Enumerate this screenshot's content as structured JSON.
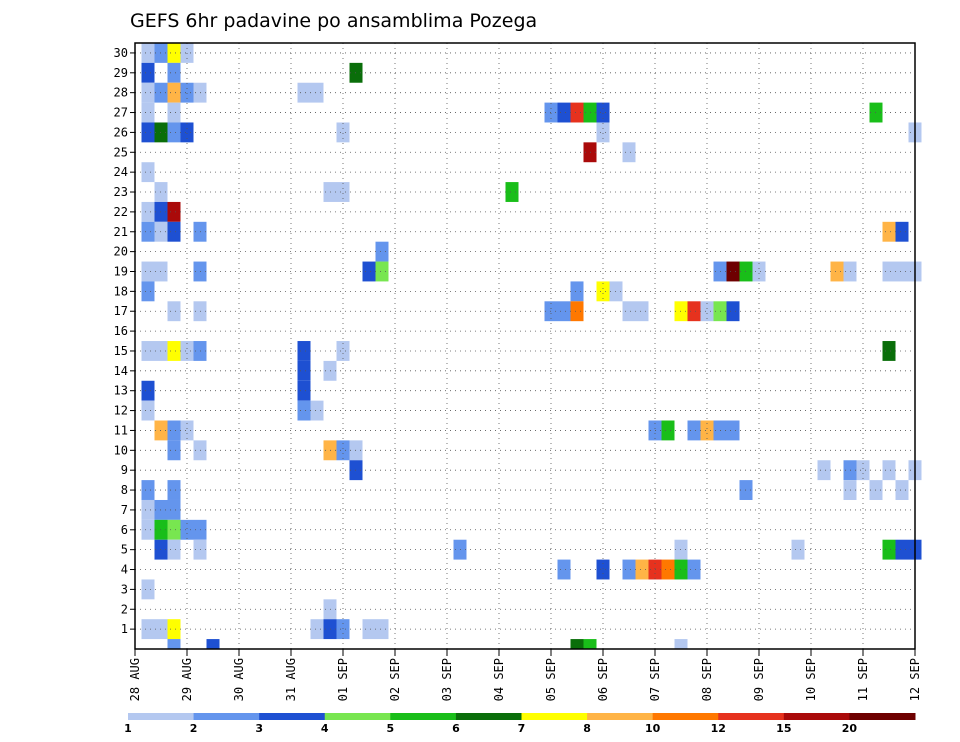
{
  "chart_data": {
    "type": "heatmap",
    "title": "GEFS 6hr padavine po ansamblima Pozega",
    "ylabel": "",
    "xlabel": "",
    "x_tick_labels": [
      "28 AUG",
      "29 AUG",
      "30 AUG",
      "31 AUG",
      "01 SEP",
      "02 SEP",
      "03 SEP",
      "04 SEP",
      "05 SEP",
      "06 SEP",
      "07 SEP",
      "08 SEP",
      "09 SEP",
      "10 SEP",
      "11 SEP",
      "12 SEP"
    ],
    "y_tick_labels": [
      "1",
      "2",
      "3",
      "4",
      "5",
      "6",
      "7",
      "8",
      "9",
      "10",
      "11",
      "12",
      "13",
      "14",
      "15",
      "16",
      "17",
      "18",
      "19",
      "20",
      "21",
      "22",
      "23",
      "24",
      "25",
      "26",
      "27",
      "28",
      "29",
      "30"
    ],
    "time_steps_per_day": 4,
    "ylim": [
      0,
      30
    ],
    "grid": "dotted",
    "colorbar": {
      "labels": [
        "1",
        "2",
        "3",
        "4",
        "5",
        "6",
        "7",
        "8",
        "10",
        "12",
        "15",
        "20"
      ],
      "colors": [
        "#b4c8f0",
        "#6495ed",
        "#1e50d2",
        "#78e650",
        "#19be19",
        "#0a6e0a",
        "#ffff00",
        "#ffb446",
        "#ff7800",
        "#e6321e",
        "#aa0a0a",
        "#6e0000"
      ]
    },
    "cells": [
      [
        1,
        30,
        0
      ],
      [
        2,
        30,
        1
      ],
      [
        3,
        30,
        6
      ],
      [
        4,
        30,
        0
      ],
      [
        1,
        29,
        2
      ],
      [
        3,
        29,
        1
      ],
      [
        17,
        29,
        5
      ],
      [
        1,
        28,
        0
      ],
      [
        2,
        28,
        1
      ],
      [
        3,
        28,
        7
      ],
      [
        4,
        28,
        1
      ],
      [
        5,
        28,
        0
      ],
      [
        13,
        28,
        0
      ],
      [
        14,
        28,
        0
      ],
      [
        1,
        27,
        0
      ],
      [
        3,
        27,
        0
      ],
      [
        32,
        27,
        1
      ],
      [
        33,
        27,
        2
      ],
      [
        34,
        27,
        9
      ],
      [
        35,
        27,
        4
      ],
      [
        36,
        27,
        2
      ],
      [
        57,
        27,
        4
      ],
      [
        1,
        26,
        2
      ],
      [
        2,
        26,
        5
      ],
      [
        3,
        26,
        1
      ],
      [
        4,
        26,
        2
      ],
      [
        16,
        26,
        0
      ],
      [
        36,
        26,
        0
      ],
      [
        60,
        26,
        0
      ],
      [
        35,
        25,
        10
      ],
      [
        38,
        25,
        0
      ],
      [
        1,
        24,
        0
      ],
      [
        2,
        23,
        0
      ],
      [
        15,
        23,
        0
      ],
      [
        16,
        23,
        0
      ],
      [
        29,
        23,
        4
      ],
      [
        1,
        22,
        0
      ],
      [
        2,
        22,
        2
      ],
      [
        3,
        22,
        10
      ],
      [
        1,
        21,
        1
      ],
      [
        2,
        21,
        0
      ],
      [
        3,
        21,
        2
      ],
      [
        5,
        21,
        1
      ],
      [
        58,
        21,
        7
      ],
      [
        59,
        21,
        2
      ],
      [
        19,
        20,
        1
      ],
      [
        1,
        19,
        0
      ],
      [
        2,
        19,
        0
      ],
      [
        5,
        19,
        1
      ],
      [
        18,
        19,
        2
      ],
      [
        19,
        19,
        3
      ],
      [
        45,
        19,
        1
      ],
      [
        46,
        19,
        11
      ],
      [
        47,
        19,
        4
      ],
      [
        48,
        19,
        0
      ],
      [
        54,
        19,
        7
      ],
      [
        55,
        19,
        0
      ],
      [
        58,
        19,
        0
      ],
      [
        59,
        19,
        0
      ],
      [
        60,
        19,
        0
      ],
      [
        1,
        18,
        1
      ],
      [
        34,
        18,
        1
      ],
      [
        36,
        18,
        6
      ],
      [
        37,
        18,
        0
      ],
      [
        3,
        17,
        0
      ],
      [
        5,
        17,
        0
      ],
      [
        32,
        17,
        1
      ],
      [
        33,
        17,
        1
      ],
      [
        34,
        17,
        8
      ],
      [
        38,
        17,
        0
      ],
      [
        39,
        17,
        0
      ],
      [
        42,
        17,
        6
      ],
      [
        43,
        17,
        9
      ],
      [
        44,
        17,
        0
      ],
      [
        45,
        17,
        3
      ],
      [
        46,
        17,
        2
      ],
      [
        1,
        15,
        0
      ],
      [
        2,
        15,
        0
      ],
      [
        3,
        15,
        6
      ],
      [
        4,
        15,
        0
      ],
      [
        5,
        15,
        1
      ],
      [
        13,
        15,
        2
      ],
      [
        16,
        15,
        0
      ],
      [
        58,
        15,
        5
      ],
      [
        13,
        14,
        2
      ],
      [
        15,
        14,
        0
      ],
      [
        1,
        13,
        2
      ],
      [
        13,
        13,
        2
      ],
      [
        1,
        12,
        0
      ],
      [
        13,
        12,
        1
      ],
      [
        14,
        12,
        0
      ],
      [
        2,
        11,
        7
      ],
      [
        3,
        11,
        1
      ],
      [
        4,
        11,
        0
      ],
      [
        40,
        11,
        1
      ],
      [
        41,
        11,
        4
      ],
      [
        43,
        11,
        1
      ],
      [
        44,
        11,
        7
      ],
      [
        45,
        11,
        1
      ],
      [
        46,
        11,
        1
      ],
      [
        3,
        10,
        1
      ],
      [
        5,
        10,
        0
      ],
      [
        15,
        10,
        7
      ],
      [
        16,
        10,
        1
      ],
      [
        17,
        10,
        0
      ],
      [
        17,
        9,
        2
      ],
      [
        53,
        9,
        0
      ],
      [
        55,
        9,
        1
      ],
      [
        56,
        9,
        0
      ],
      [
        58,
        9,
        0
      ],
      [
        60,
        9,
        0
      ],
      [
        1,
        8,
        1
      ],
      [
        3,
        8,
        1
      ],
      [
        47,
        8,
        1
      ],
      [
        55,
        8,
        0
      ],
      [
        57,
        8,
        0
      ],
      [
        59,
        8,
        0
      ],
      [
        1,
        7,
        0
      ],
      [
        2,
        7,
        1
      ],
      [
        3,
        7,
        1
      ],
      [
        1,
        6,
        0
      ],
      [
        2,
        6,
        4
      ],
      [
        3,
        6,
        3
      ],
      [
        4,
        6,
        1
      ],
      [
        5,
        6,
        1
      ],
      [
        2,
        5,
        2
      ],
      [
        3,
        5,
        0
      ],
      [
        5,
        5,
        0
      ],
      [
        25,
        5,
        1
      ],
      [
        42,
        5,
        0
      ],
      [
        51,
        5,
        0
      ],
      [
        58,
        5,
        4
      ],
      [
        59,
        5,
        2
      ],
      [
        60,
        5,
        2
      ],
      [
        36,
        4,
        2
      ],
      [
        38,
        4,
        1
      ],
      [
        39,
        4,
        7
      ],
      [
        40,
        4,
        9
      ],
      [
        41,
        4,
        8
      ],
      [
        42,
        4,
        4
      ],
      [
        43,
        4,
        1
      ],
      [
        33,
        4,
        1
      ],
      [
        1,
        3,
        0
      ],
      [
        15,
        2,
        0
      ],
      [
        1,
        1,
        0
      ],
      [
        2,
        1,
        0
      ],
      [
        3,
        1,
        6
      ],
      [
        14,
        1,
        0
      ],
      [
        15,
        1,
        2
      ],
      [
        16,
        1,
        1
      ],
      [
        18,
        1,
        0
      ],
      [
        19,
        1,
        0
      ],
      [
        3,
        0,
        1
      ],
      [
        6,
        0,
        2
      ],
      [
        34,
        0,
        5
      ],
      [
        35,
        0,
        4
      ],
      [
        42,
        0,
        0
      ]
    ]
  }
}
